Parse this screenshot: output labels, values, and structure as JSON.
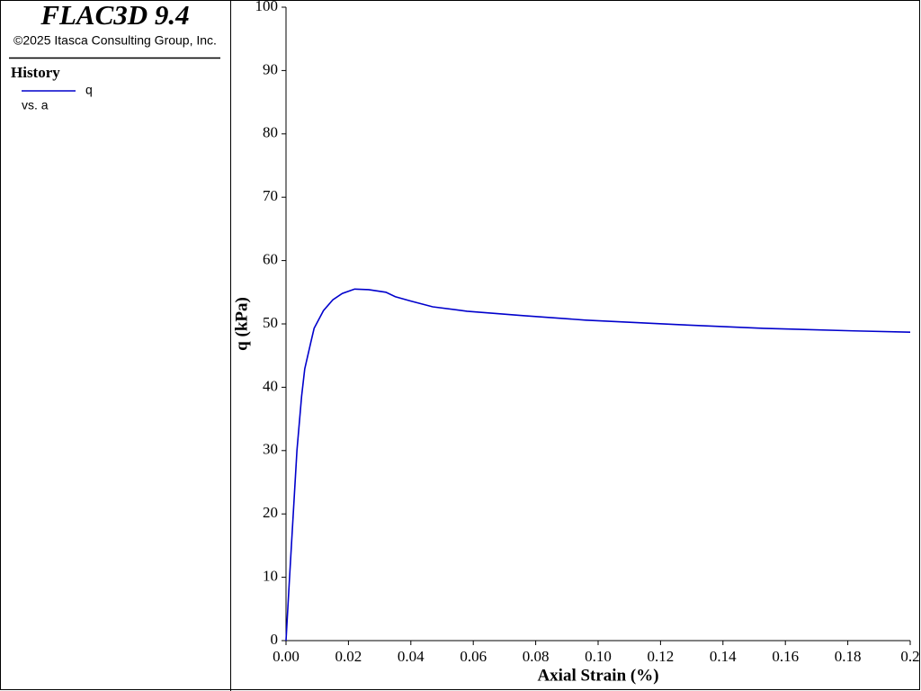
{
  "app_title": "FLAC3D 9.4",
  "copyright": "©2025 Itasca Consulting Group, Inc.",
  "chart_data": {
    "type": "line",
    "legend_title": "History",
    "legend_note": "vs. a",
    "x_label": "Axial Strain (%)",
    "y_label": "q (kPa)",
    "x": [
      0,
      0.001,
      0.0035,
      0.005,
      0.006,
      0.008,
      0.009,
      0.012,
      0.015,
      0.018,
      0.022,
      0.0265,
      0.032,
      0.035,
      0.04,
      0.047,
      0.058,
      0.076,
      0.096,
      0.125,
      0.153,
      0.182,
      0.2
    ],
    "series": [
      {
        "name": "q",
        "color": "#0000cc",
        "values": [
          0,
          8.8,
          30,
          38.6,
          42.9,
          47.2,
          49.3,
          52.1,
          53.8,
          54.8,
          55.5,
          55.4,
          55.0,
          54.3,
          53.6,
          52.7,
          52.0,
          51.3,
          50.6,
          49.9,
          49.3,
          48.9,
          48.7
        ]
      }
    ],
    "xlim": [
      0,
      0.2
    ],
    "ylim": [
      0,
      100
    ],
    "xticks": [
      {
        "value": 0,
        "label": "0.00"
      },
      {
        "value": 0.02,
        "label": "0.02"
      },
      {
        "value": 0.04,
        "label": "0.04"
      },
      {
        "value": 0.06,
        "label": "0.06"
      },
      {
        "value": 0.08,
        "label": "0.08"
      },
      {
        "value": 0.1,
        "label": "0.10"
      },
      {
        "value": 0.12,
        "label": "0.12"
      },
      {
        "value": 0.14,
        "label": "0.14"
      },
      {
        "value": 0.16,
        "label": "0.16"
      },
      {
        "value": 0.18,
        "label": "0.18"
      },
      0.2
    ],
    "yticks": [
      0,
      10,
      20,
      30,
      40,
      50,
      60,
      70,
      80,
      90,
      100
    ],
    "grid": false
  }
}
